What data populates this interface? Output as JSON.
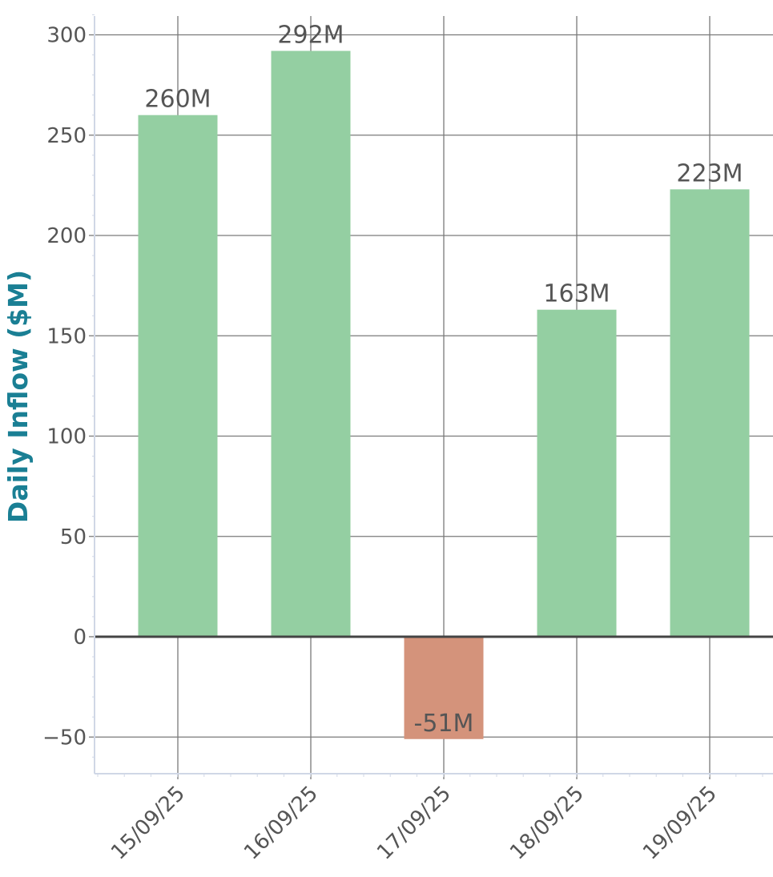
{
  "chart_data": {
    "type": "bar",
    "categories": [
      "15/09/25",
      "16/09/25",
      "17/09/25",
      "18/09/25",
      "19/09/25"
    ],
    "values": [
      260,
      292,
      -51,
      163,
      223
    ],
    "data_labels": [
      "260M",
      "292M",
      "-51M",
      "163M",
      "223M"
    ],
    "title": "",
    "xlabel": "",
    "ylabel": "Daily Inflow ($M)",
    "ylim": [
      -68,
      310
    ],
    "yticks": [
      -50,
      0,
      50,
      100,
      150,
      200,
      250,
      300
    ],
    "ytick_labels": [
      "−50",
      "0",
      "50",
      "100",
      "150",
      "200",
      "250",
      "300"
    ],
    "grid": true,
    "colors": {
      "positive": "#94cfa2",
      "negative": "#d4937b",
      "ylabel": "#1a7f94",
      "grid": "#7a7a7a",
      "zero_line": "#444444",
      "spine": "#d0d7e6",
      "text": "#555555"
    }
  }
}
